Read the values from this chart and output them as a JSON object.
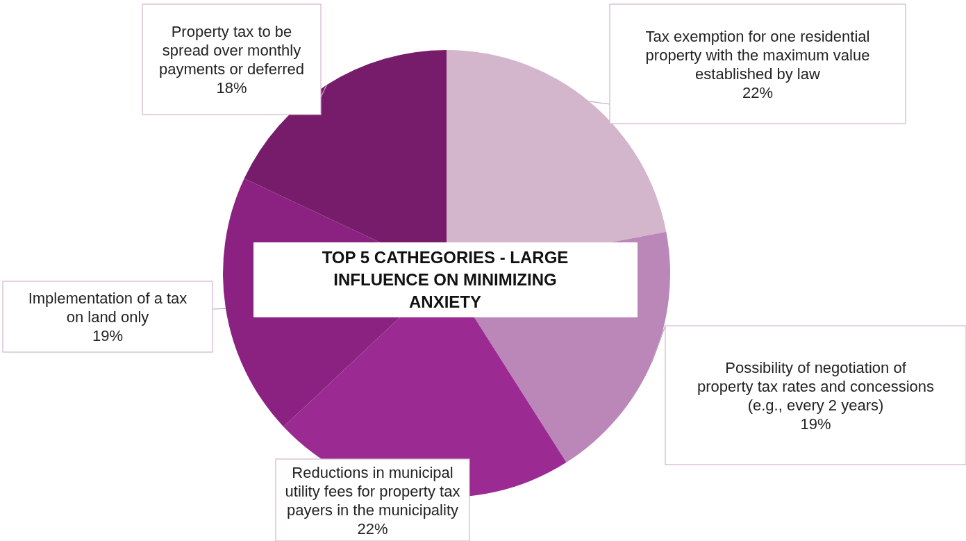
{
  "chart_data": {
    "type": "pie",
    "title": "TOP 5 CATHEGORIES - LARGE INFLUENCE ON MINIMIZING ANXIETY",
    "categories": [
      "Tax exemption for one residential property with the maximum value established by law",
      "Possibility of negotiation of property tax rates and concessions (e.g., every 2 years)",
      "Reductions in municipal utility fees for property tax payers in the municipality",
      "Implementation of a tax on land only",
      "Property tax to be spread over monthly payments or deferred"
    ],
    "values": [
      22,
      19,
      22,
      19,
      18
    ],
    "colors": [
      "#d3b5cc",
      "#bb87b8",
      "#9c2a93",
      "#8b2282",
      "#761c6b"
    ],
    "value_labels": [
      "22%",
      "19%",
      "22%",
      "19%",
      "18%"
    ]
  }
}
